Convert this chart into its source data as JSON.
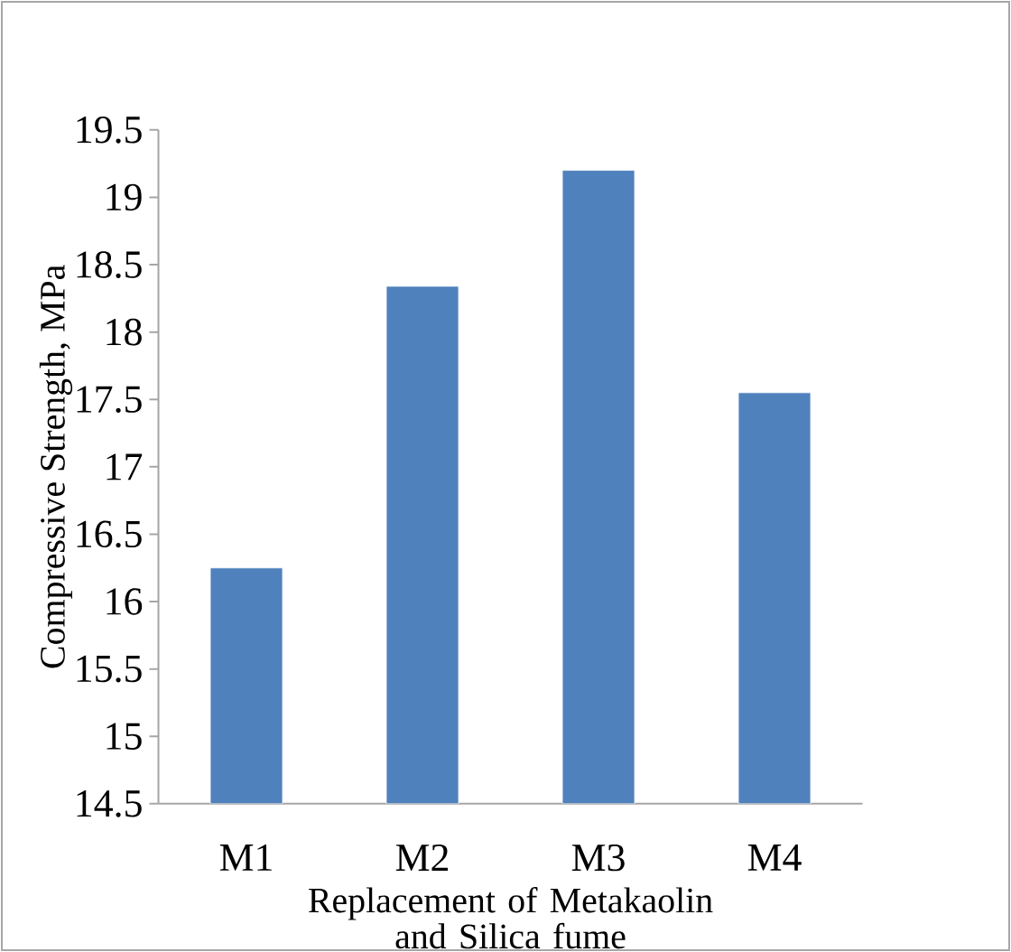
{
  "chart_data": {
    "type": "bar",
    "xlabel": "Replacement of Metakaolin and Silica fume",
    "ylabel": "Compressive Strength, MPa",
    "categories": [
      "M1",
      "M2",
      "M3",
      "M4"
    ],
    "values": [
      16.25,
      18.34,
      19.2,
      17.55
    ],
    "color": "#4f81bd",
    "ylim": [
      14.5,
      19.5
    ],
    "yticks": [
      14.5,
      15,
      15.5,
      16,
      16.5,
      17,
      17.5,
      18,
      18.5,
      19,
      19.5
    ],
    "grid": false
  }
}
